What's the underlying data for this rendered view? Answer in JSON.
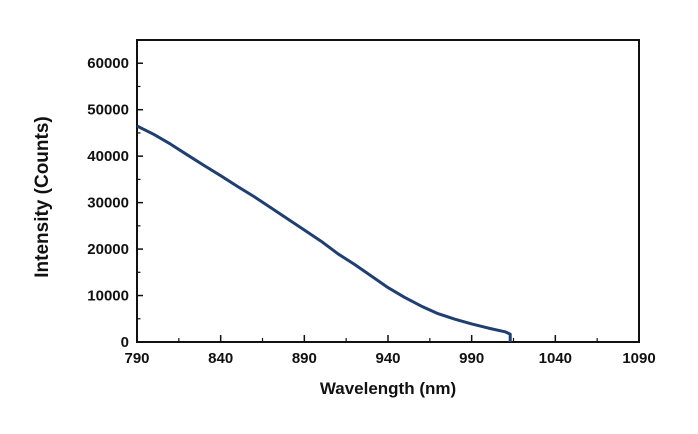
{
  "chart_data": {
    "type": "line",
    "title": "",
    "xlabel": "Wavelength (nm)",
    "ylabel": "Intensity (Counts)",
    "xlim": [
      790,
      1090
    ],
    "ylim": [
      0,
      65000
    ],
    "x_ticks": [
      790,
      840,
      890,
      940,
      990,
      1040,
      1090
    ],
    "x_tick_labels": [
      "790",
      "840",
      "890",
      "940",
      "990",
      "1040",
      "1090"
    ],
    "y_ticks": [
      0,
      10000,
      20000,
      30000,
      40000,
      50000,
      60000
    ],
    "y_tick_labels": [
      "0",
      "10000",
      "20000",
      "30000",
      "40000",
      "50000",
      "60000"
    ],
    "grid": false,
    "legend": "none",
    "series": [
      {
        "color": "#1f3f73",
        "x": [
          790,
          800,
          810,
          820,
          830,
          840,
          850,
          860,
          870,
          880,
          890,
          900,
          910,
          920,
          930,
          940,
          950,
          960,
          970,
          980,
          990,
          1000,
          1010,
          1013,
          1013
        ],
        "y": [
          46500,
          44700,
          42600,
          40300,
          38000,
          35800,
          33500,
          31300,
          28900,
          26500,
          24100,
          21700,
          19000,
          16700,
          14200,
          11700,
          9600,
          7700,
          6100,
          4900,
          3900,
          3000,
          2200,
          1700,
          0
        ]
      }
    ]
  }
}
